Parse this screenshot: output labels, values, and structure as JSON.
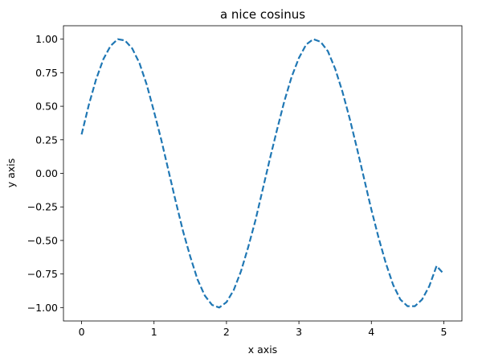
{
  "chart_data": {
    "type": "line",
    "title": "a nice cosinus",
    "xlabel": "x axis",
    "ylabel": "y axis",
    "xlim": [
      -0.25,
      5.25
    ],
    "ylim": [
      -1.1,
      1.1
    ],
    "xticks": [
      0,
      1,
      2,
      3,
      4,
      5
    ],
    "xtick_labels": [
      "0",
      "1",
      "2",
      "3",
      "4",
      "5"
    ],
    "yticks": [
      -1.0,
      -0.75,
      -0.5,
      -0.25,
      0.0,
      0.25,
      0.5,
      0.75,
      1.0
    ],
    "ytick_labels": [
      "−1.00",
      "−0.75",
      "−0.50",
      "−0.25",
      "0.00",
      "0.25",
      "0.50",
      "0.75",
      "1.00"
    ],
    "grid": false,
    "series": [
      {
        "color": "#1f77b4",
        "line_style": "dashed",
        "x": [
          0,
          0.1,
          0.2,
          0.3,
          0.4,
          0.5,
          0.6,
          0.7,
          0.8,
          0.9,
          1.0,
          1.1,
          1.2,
          1.3,
          1.4,
          1.5,
          1.6,
          1.7,
          1.8,
          1.9,
          2.0,
          2.1,
          2.2,
          2.3,
          2.4,
          2.5,
          2.6,
          2.7,
          2.8,
          2.9,
          3.0,
          3.1,
          3.2,
          3.3,
          3.4,
          3.5,
          3.6,
          3.7,
          3.8,
          3.9,
          4.0,
          4.1,
          4.2,
          4.3,
          4.4,
          4.5,
          4.6,
          4.7,
          4.8,
          4.9,
          5.0
        ],
        "y": [
          0.29,
          0.51,
          0.7,
          0.85,
          0.95,
          1.0,
          0.99,
          0.93,
          0.82,
          0.66,
          0.46,
          0.25,
          0.02,
          -0.21,
          -0.43,
          -0.62,
          -0.79,
          -0.91,
          -0.98,
          -1.0,
          -0.96,
          -0.87,
          -0.73,
          -0.55,
          -0.35,
          -0.12,
          0.11,
          0.33,
          0.54,
          0.72,
          0.86,
          0.96,
          1.0,
          0.98,
          0.91,
          0.78,
          0.61,
          0.41,
          0.19,
          -0.04,
          -0.27,
          -0.48,
          -0.67,
          -0.83,
          -0.94,
          -0.99,
          -0.99,
          -0.94,
          -0.84,
          -0.69,
          -0.75
        ]
      }
    ]
  }
}
